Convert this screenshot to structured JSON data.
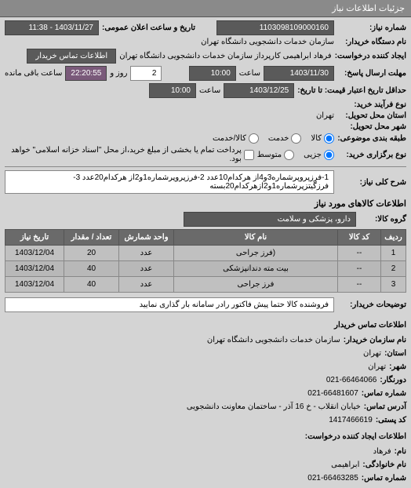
{
  "panelTitle": "جزئیات اطلاعات نیاز",
  "fields": {
    "needNumber": {
      "label": "شماره نیاز:",
      "value": "1103098109000160"
    },
    "announceDateTime": {
      "label": "تاریخ و ساعت اعلان عمومی:",
      "value": "1403/11/27 - 11:38"
    },
    "buyerDevice": {
      "label": "نام دستگاه خریدار:",
      "value": "سازمان خدمات دانشجویی دانشگاه تهران"
    },
    "requestCreator": {
      "label": "ایجاد کننده درخواست:",
      "value": "فرهاد ابراهیمی کارپرداز سازمان خدمات دانشجویی دانشگاه تهران"
    },
    "contactBtn": "اطلاعات تماس خریدار",
    "replyDeadline": {
      "label": "مهلت ارسال پاسخ:",
      "date": "1403/11/30",
      "timeLabel": "ساعت",
      "time": "10:00",
      "and": "و",
      "daysVal": "2",
      "daysUnit": "روز و",
      "countdown": "22:20:55",
      "remain": "ساعت باقی مانده"
    },
    "priceValidity": {
      "label": "حداقل تاریخ اعتبار قیمت: تا تاریخ:",
      "date": "1403/12/25",
      "timeLabel": "ساعت",
      "time": "10:00"
    },
    "processType": {
      "label": "نوع فرآیند خرید:"
    },
    "state": {
      "label": "استان محل تحویل:",
      "value": "تهران"
    },
    "city": {
      "label": "شهر محل تحویل:"
    },
    "packaging": {
      "label": "طبقه بندی موضوعی:",
      "options": [
        "کالا",
        "خدمت",
        "کالا/خدمت"
      ],
      "selected": 0
    },
    "demandType": {
      "label": "نوع برگزاری خرید:",
      "options": [
        "جزیی",
        "متوسط"
      ],
      "selected": 0,
      "note": "پرداخت تمام یا بخشی از مبلغ خرید،از محل \"اسناد خزانه اسلامی\" خواهد بود."
    },
    "needTitle": {
      "label": "شرح کلی نیاز:",
      "value": "1-فرزپروپرشماره3و4از هرکدام10عدد 2-فرزپروپرشماره1و2از هرکدام20عدد 3-فرزگیتزپرشماره1و2ازهرکدام20بسته"
    }
  },
  "itemsHeader": "اطلاعات کالاهای مورد نیاز",
  "goodsGroup": {
    "label": "گروه کالا:",
    "value": "دارو، پزشکی و سلامت"
  },
  "tableCols": [
    "ردیف",
    "کد کالا",
    "نام کالا",
    "واحد شمارش",
    "تعداد / مقدار",
    "تاریخ نیاز"
  ],
  "tableRows": [
    [
      "1",
      "--",
      "(فرز جراحی",
      "عدد",
      "20",
      "1403/12/04"
    ],
    [
      "2",
      "--",
      "بیت مته دندانپزشکی",
      "عدد",
      "40",
      "1403/12/04"
    ],
    [
      "3",
      "--",
      "فرز جراحی",
      "عدد",
      "40",
      "1403/12/04"
    ]
  ],
  "buyerNotes": {
    "label": "توضیحات خریدار:",
    "value": "فروشنده کالا حتما پیش فاکتور رادر سامانه بار گذاری نمایید"
  },
  "orgInfo": {
    "title": "اطلاعات تماس خریدار",
    "rows": [
      {
        "label": "نام سازمان خریدار:",
        "value": "سازمان خدمات دانشجویی دانشگاه تهران"
      },
      {
        "label": "استان:",
        "value": "تهران"
      },
      {
        "label": "شهر:",
        "value": "تهران"
      },
      {
        "label": "دورنگار:",
        "value": "021-66464066"
      },
      {
        "label": "شماره تماس:",
        "value": "021-66481607"
      },
      {
        "label": "آدرس تماس:",
        "value": "خیابان انقلاب - خ 16 آذر - ساختمان معاونت دانشجویی"
      },
      {
        "label": "کد پستی:",
        "value": "1417466619"
      }
    ],
    "creatorTitle": "اطلاعات ایجاد کننده درخواست:",
    "creatorRows": [
      {
        "label": "نام:",
        "value": "فرهاد"
      },
      {
        "label": "نام خانوادگی:",
        "value": "ابراهیمی"
      },
      {
        "label": "شماره تماس:",
        "value": "021-66463285"
      }
    ]
  }
}
